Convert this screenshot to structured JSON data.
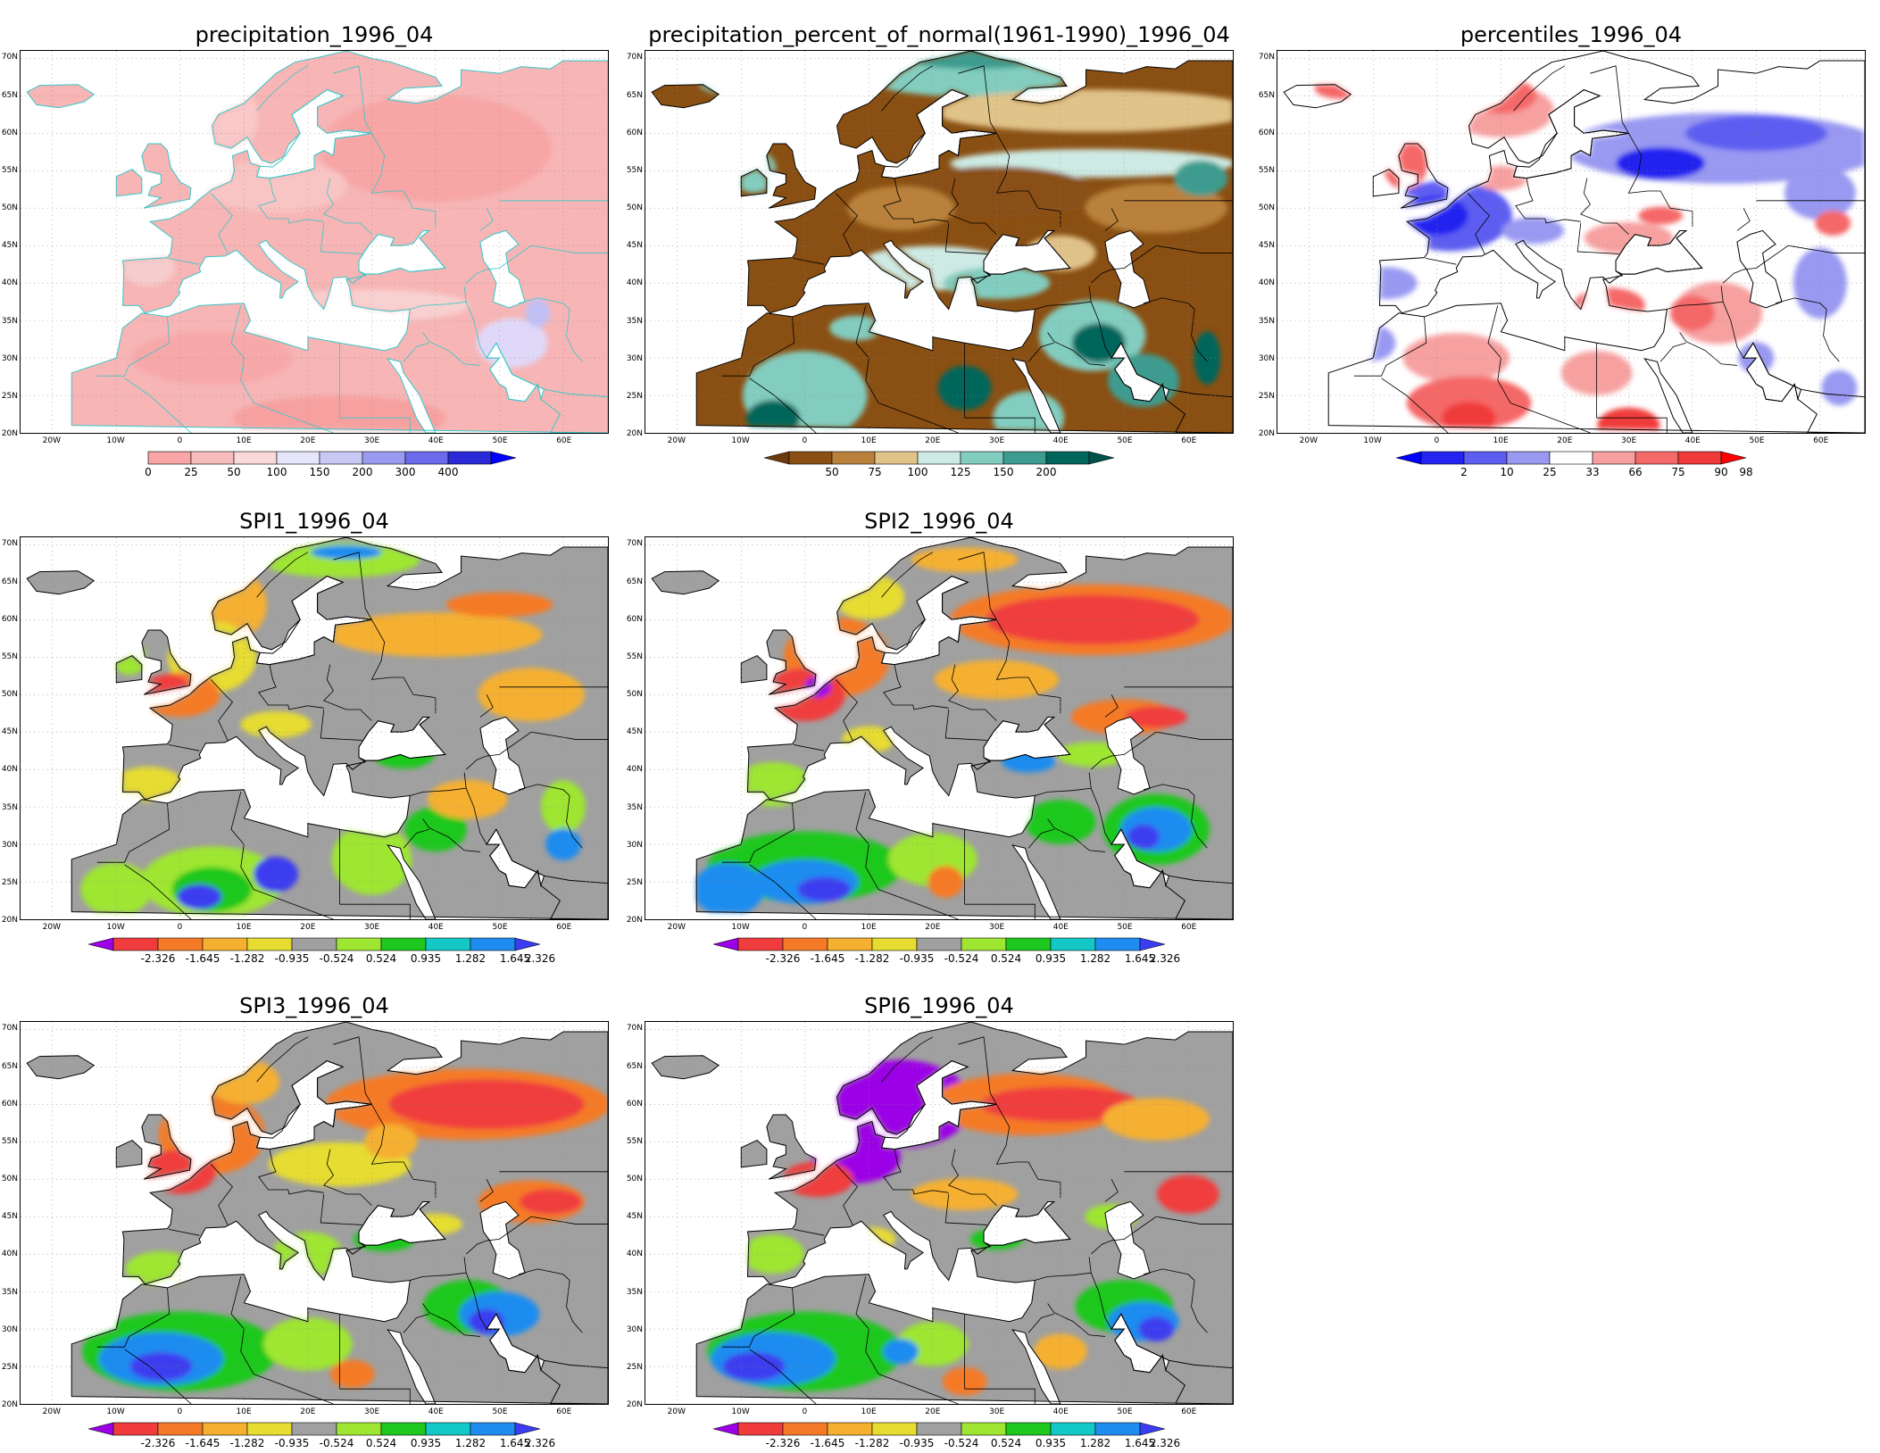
{
  "lat_ticks": [
    "20N",
    "25N",
    "30N",
    "35N",
    "40N",
    "45N",
    "50N",
    "55N",
    "60N",
    "65N",
    "70N"
  ],
  "lon_ticks": [
    "20W",
    "10W",
    "0",
    "10E",
    "20E",
    "30E",
    "40E",
    "50E",
    "60E"
  ],
  "panels": [
    {
      "id": "precip",
      "title": "precipitation_1996_04",
      "style": "precip",
      "colorbar": {
        "ticks": [
          "0",
          "25",
          "50",
          "100",
          "150",
          "200",
          "300",
          "400"
        ],
        "colors": [
          "#f7a5a5",
          "#f7bdbd",
          "#f9d9d9",
          "#e6e6fb",
          "#c8c8f5",
          "#9a9af0",
          "#6a6aeb",
          "#2a2ad8"
        ],
        "arrow_left": false,
        "arrow_right": true,
        "arrow_right_color": "#0000ff"
      }
    },
    {
      "id": "percent-normal",
      "title": "precipitation_percent_of_normal(1961-1990)_1996_04",
      "style": "pctnorm",
      "colorbar": {
        "ticks": [
          "50",
          "75",
          "100",
          "125",
          "150",
          "200"
        ],
        "colors": [
          "#8a4f12",
          "#b9813b",
          "#e0c389",
          "#cdeae4",
          "#82cdc0",
          "#3c9c8f",
          "#00665c"
        ],
        "arrow_left": true,
        "arrow_left_color": "#6b3a0a",
        "arrow_right": true,
        "arrow_right_color": "#00524a"
      }
    },
    {
      "id": "percentiles",
      "title": "percentiles_1996_04",
      "style": "percentiles",
      "colorbar": {
        "ticks": [
          "2",
          "10",
          "25",
          "33",
          "66",
          "75",
          "90",
          "98"
        ],
        "colors": [
          "#2424f0",
          "#5d5df2",
          "#9999f2",
          "#ffffff",
          "#f7a0a0",
          "#f56868",
          "#f03a3a"
        ],
        "arrow_left": true,
        "arrow_left_color": "#0000ff",
        "arrow_right": true,
        "arrow_right_color": "#ff0000"
      }
    },
    {
      "id": "spi1",
      "title": "SPI1_1996_04",
      "style": "spi1",
      "colorbar": {
        "ticks": [
          "-2.326",
          "-1.645",
          "-1.282",
          "-0.935",
          "-0.524",
          "0.524",
          "0.935",
          "1.282",
          "1.645",
          "2.326"
        ],
        "colors": [
          "#f03c3c",
          "#f57a28",
          "#f5b030",
          "#e6dc32",
          "#a0a0a0",
          "#9ee632",
          "#1ec81e",
          "#14c8c8",
          "#1e8cf0"
        ],
        "arrow_left": true,
        "arrow_left_color": "#9b00e6",
        "arrow_right": true,
        "arrow_right_color": "#3c3cf0"
      }
    },
    {
      "id": "spi2",
      "title": "SPI2_1996_04",
      "style": "spi2",
      "colorbar": {
        "ticks": [
          "-2.326",
          "-1.645",
          "-1.282",
          "-0.935",
          "-0.524",
          "0.524",
          "0.935",
          "1.282",
          "1.645",
          "2.326"
        ],
        "colors": [
          "#f03c3c",
          "#f57a28",
          "#f5b030",
          "#e6dc32",
          "#a0a0a0",
          "#9ee632",
          "#1ec81e",
          "#14c8c8",
          "#1e8cf0"
        ],
        "arrow_left": true,
        "arrow_left_color": "#9b00e6",
        "arrow_right": true,
        "arrow_right_color": "#3c3cf0"
      }
    },
    {
      "id": "spi3",
      "title": "SPI3_1996_04",
      "style": "spi3",
      "colorbar": {
        "ticks": [
          "-2.326",
          "-1.645",
          "-1.282",
          "-0.935",
          "-0.524",
          "0.524",
          "0.935",
          "1.282",
          "1.645",
          "2.326"
        ],
        "colors": [
          "#f03c3c",
          "#f57a28",
          "#f5b030",
          "#e6dc32",
          "#a0a0a0",
          "#9ee632",
          "#1ec81e",
          "#14c8c8",
          "#1e8cf0"
        ],
        "arrow_left": true,
        "arrow_left_color": "#9b00e6",
        "arrow_right": true,
        "arrow_right_color": "#3c3cf0"
      }
    },
    {
      "id": "spi6",
      "title": "SPI6_1996_04",
      "style": "spi6",
      "colorbar": {
        "ticks": [
          "-2.326",
          "-1.645",
          "-1.282",
          "-0.935",
          "-0.524",
          "0.524",
          "0.935",
          "1.282",
          "1.645",
          "2.326"
        ],
        "colors": [
          "#f03c3c",
          "#f57a28",
          "#f5b030",
          "#e6dc32",
          "#a0a0a0",
          "#9ee632",
          "#1ec81e",
          "#14c8c8",
          "#1e8cf0"
        ],
        "arrow_left": true,
        "arrow_left_color": "#9b00e6",
        "arrow_right": true,
        "arrow_right_color": "#3c3cf0"
      }
    }
  ]
}
